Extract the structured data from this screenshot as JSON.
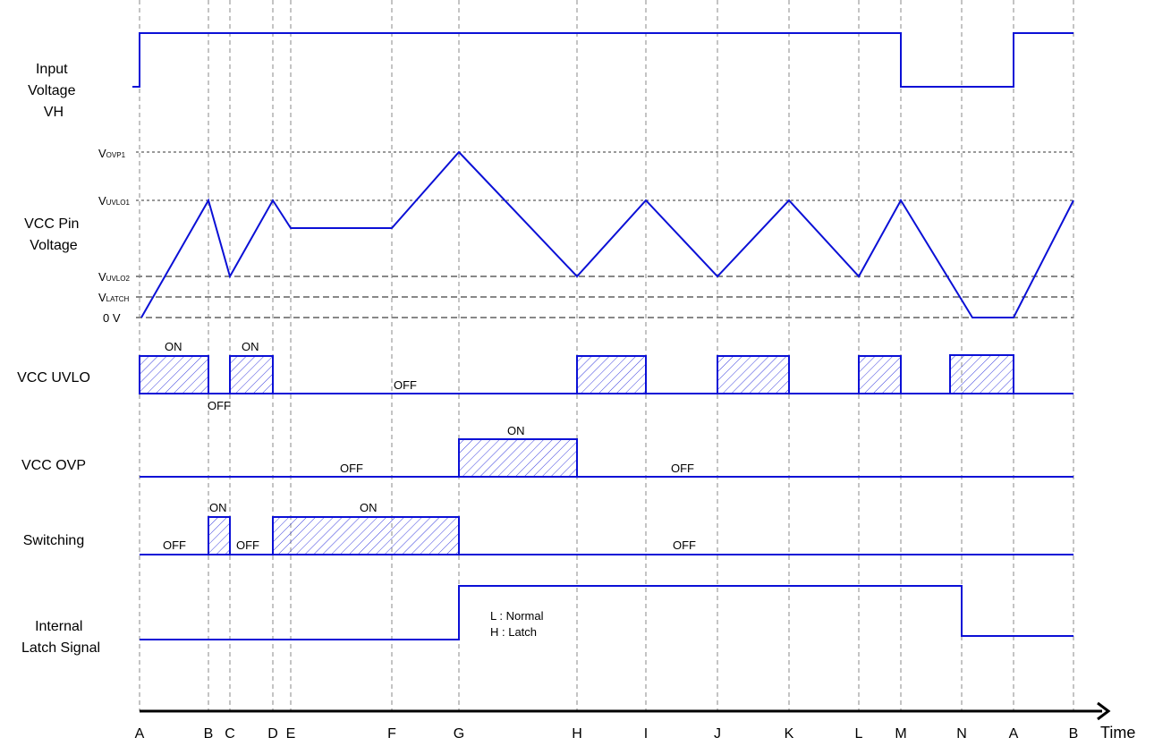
{
  "time_labels": [
    "A",
    "B",
    "C",
    "D",
    "E",
    "F",
    "G",
    "H",
    "I",
    "J",
    "K",
    "L",
    "M",
    "N",
    "A",
    "B"
  ],
  "axis_label": "Time",
  "rows": {
    "input_voltage": [
      "Input",
      "Voltage",
      "VH"
    ],
    "vcc_pin": [
      "VCC Pin",
      "Voltage"
    ],
    "uvlo": "VCC UVLO",
    "ovp": "VCC OVP",
    "switching": "Switching",
    "latch": [
      "Internal",
      "Latch Signal"
    ]
  },
  "levels": {
    "ovp1": {
      "main": "V",
      "sub": "OVP1"
    },
    "uvlo1": {
      "main": "V",
      "sub": "UVLO1"
    },
    "uvlo2": {
      "main": "V",
      "sub": "UVLO2"
    },
    "latch": {
      "main": "V",
      "sub": "LATCH"
    },
    "zero": "0 V"
  },
  "states": {
    "uvlo_on_1": "ON",
    "uvlo_on_2": "ON",
    "uvlo_off_1": "OFF",
    "uvlo_off_2": "OFF",
    "ovp_on": "ON",
    "ovp_off_1": "OFF",
    "ovp_off_2": "OFF",
    "sw_on_1": "ON",
    "sw_on_2": "ON",
    "sw_off_1": "OFF",
    "sw_off_2": "OFF",
    "sw_off_3": "OFF"
  },
  "latch_legend": [
    "L : Normal",
    "H : Latch"
  ],
  "colors": {
    "waveform": "#0b10d6"
  }
}
